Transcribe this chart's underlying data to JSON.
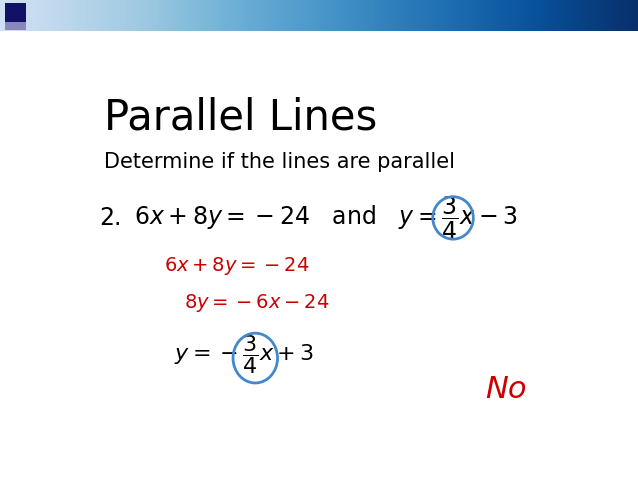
{
  "title": "Parallel Lines",
  "subtitle": "Determine if the lines are parallel",
  "bg_color": "#ffffff",
  "header_bar_color": "#4455aa",
  "title_color": "#000000",
  "subtitle_color": "#000000",
  "main_eq_color": "#000000",
  "step_color": "#cc0000",
  "answer_color": "#cc0000",
  "ellipse_color": "#4488cc",
  "answer": "No",
  "problem_number": "2.",
  "figsize": [
    6.38,
    4.79
  ],
  "dpi": 100
}
